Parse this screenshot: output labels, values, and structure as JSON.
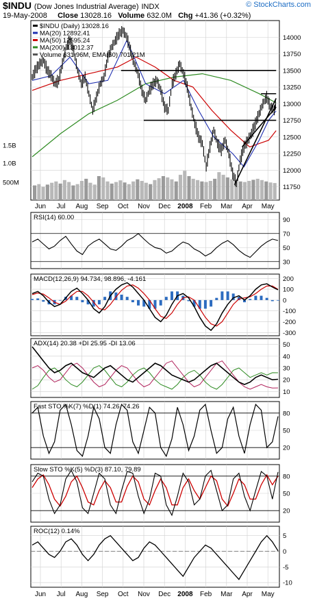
{
  "header": {
    "symbol": "$INDU",
    "name": "(Dow Jones Industrial Average)",
    "exchange": "INDX",
    "brand": "© StockCharts.com",
    "date": "19-May-2008",
    "close_label": "Close",
    "close_value": "13028.16",
    "volume_label": "Volume",
    "volume_value": "632.0M",
    "chg_label": "Chg",
    "chg_value": "+41.36 (+0.32%)"
  },
  "colors": {
    "price": "#000000",
    "ma20": "#1f2fb0",
    "ma50": "#cc0000",
    "ma200": "#2e8b22",
    "volume": "#b8b8b8",
    "volume_up": "#9a9a9a",
    "rsi": "#000000",
    "macd": "#000000",
    "signal": "#cc0000",
    "histogram": "#2d6cc0",
    "adx": "#000000",
    "plus_di": "#2e8b22",
    "minus_di": "#b0205a",
    "sto_k": "#000000",
    "sto_d": "#cc0000",
    "roc": "#000000",
    "grid": "#cfcfcf",
    "frame": "#000000"
  },
  "chart_data": [
    {
      "type": "line",
      "panel": "price",
      "legend": [
        "$INDU (Daily) 13028.16",
        "MA(20) 12892.41",
        "MA(50) 12595.24",
        "MA(200) 13012.37",
        "Volume 631.96M, EMA(60) 701.21M"
      ],
      "y_ticks": [
        14000,
        13750,
        13500,
        13250,
        13000,
        12750,
        12500,
        12250,
        12000,
        11750
      ],
      "ylim": [
        11550,
        14250
      ],
      "volume_ticks": [
        "1.5B",
        "1.0B",
        "500M"
      ],
      "x_ticks": [
        "Jun",
        "Jul",
        "Aug",
        "Sep",
        "Oct",
        "Nov",
        "Dec",
        "2008",
        "Feb",
        "Mar",
        "Apr",
        "May"
      ],
      "close_points": [
        [
          0,
          13400
        ],
        [
          4,
          13520
        ],
        [
          8,
          13600
        ],
        [
          12,
          13650
        ],
        [
          16,
          13500
        ],
        [
          20,
          13420
        ],
        [
          24,
          13300
        ],
        [
          28,
          13350
        ],
        [
          32,
          13600
        ],
        [
          36,
          13850
        ],
        [
          40,
          13950
        ],
        [
          44,
          13800
        ],
        [
          48,
          13500
        ],
        [
          52,
          13300
        ],
        [
          56,
          13400
        ],
        [
          60,
          13150
        ],
        [
          64,
          12900
        ],
        [
          68,
          13100
        ],
        [
          72,
          13300
        ],
        [
          76,
          13400
        ],
        [
          80,
          13700
        ],
        [
          84,
          13850
        ],
        [
          88,
          13950
        ],
        [
          92,
          14050
        ],
        [
          96,
          14100
        ],
        [
          100,
          14000
        ],
        [
          104,
          13800
        ],
        [
          108,
          13600
        ],
        [
          112,
          13450
        ],
        [
          116,
          13200
        ],
        [
          120,
          13050
        ],
        [
          124,
          13200
        ],
        [
          128,
          13300
        ],
        [
          132,
          13350
        ],
        [
          136,
          13200
        ],
        [
          140,
          12950
        ],
        [
          144,
          12900
        ],
        [
          148,
          13300
        ],
        [
          152,
          13450
        ],
        [
          156,
          13600
        ],
        [
          160,
          13450
        ],
        [
          164,
          13250
        ],
        [
          168,
          12950
        ],
        [
          172,
          12700
        ],
        [
          176,
          12500
        ],
        [
          180,
          12400
        ],
        [
          184,
          12050
        ],
        [
          188,
          12350
        ],
        [
          192,
          12600
        ],
        [
          196,
          12400
        ],
        [
          200,
          12300
        ],
        [
          204,
          12450
        ],
        [
          208,
          12250
        ],
        [
          212,
          11950
        ],
        [
          216,
          11800
        ],
        [
          220,
          12150
        ],
        [
          224,
          12350
        ],
        [
          228,
          12450
        ],
        [
          232,
          12550
        ],
        [
          236,
          12700
        ],
        [
          240,
          12850
        ],
        [
          244,
          13000
        ],
        [
          248,
          13100
        ],
        [
          252,
          12950
        ],
        [
          256,
          12900
        ],
        [
          258,
          13028
        ]
      ],
      "ma20_points": [
        [
          0,
          13350
        ],
        [
          20,
          13420
        ],
        [
          40,
          13700
        ],
        [
          60,
          13300
        ],
        [
          80,
          13350
        ],
        [
          100,
          13950
        ],
        [
          120,
          13300
        ],
        [
          140,
          13150
        ],
        [
          160,
          13350
        ],
        [
          176,
          12900
        ],
        [
          192,
          12500
        ],
        [
          212,
          12250
        ],
        [
          224,
          12050
        ],
        [
          240,
          12450
        ],
        [
          250,
          12750
        ],
        [
          258,
          12892
        ]
      ],
      "ma50_points": [
        [
          0,
          13200
        ],
        [
          30,
          13350
        ],
        [
          60,
          13450
        ],
        [
          90,
          13550
        ],
        [
          110,
          13700
        ],
        [
          130,
          13550
        ],
        [
          150,
          13350
        ],
        [
          170,
          13250
        ],
        [
          190,
          12900
        ],
        [
          210,
          12600
        ],
        [
          230,
          12350
        ],
        [
          250,
          12450
        ],
        [
          258,
          12595
        ]
      ],
      "ma200_points": [
        [
          0,
          12200
        ],
        [
          30,
          12550
        ],
        [
          60,
          12850
        ],
        [
          90,
          13050
        ],
        [
          120,
          13300
        ],
        [
          150,
          13400
        ],
        [
          180,
          13450
        ],
        [
          210,
          13350
        ],
        [
          240,
          13150
        ],
        [
          258,
          13012
        ]
      ],
      "trendlines": [
        {
          "from": [
            94,
            13500
          ],
          "to": [
            258,
            13500
          ]
        },
        {
          "from": [
            118,
            12750
          ],
          "to": [
            258,
            12750
          ]
        },
        {
          "from": [
            214,
            11780
          ],
          "to": [
            258,
            13080
          ]
        },
        {
          "from": [
            222,
            12350
          ],
          "to": [
            258,
            12950
          ]
        },
        {
          "from": [
            242,
            13150
          ],
          "to": [
            258,
            13150
          ]
        }
      ],
      "volume_values": [
        0.55,
        0.6,
        0.5,
        0.58,
        0.65,
        0.7,
        0.62,
        0.75,
        0.68,
        0.55,
        0.6,
        0.72,
        0.8,
        0.65,
        0.58,
        0.9,
        0.85,
        0.7,
        0.62,
        0.68,
        0.74,
        0.66,
        0.6,
        0.7,
        0.78,
        0.72,
        0.65,
        0.6,
        0.75,
        0.82,
        0.9,
        0.85,
        0.78,
        0.7,
        0.95,
        1.1,
        0.9,
        0.8,
        0.75,
        0.7,
        0.68,
        0.72,
        0.8,
        1.05,
        0.95,
        0.85,
        0.78,
        0.74,
        0.7,
        0.68,
        0.72,
        0.76,
        0.8,
        0.75,
        0.7,
        0.66,
        0.64
      ]
    },
    {
      "type": "line",
      "panel": "rsi",
      "label": "RSI(14) 60.00",
      "y_ticks": [
        90,
        70,
        50,
        30
      ],
      "ylim": [
        20,
        100
      ],
      "values": [
        58,
        62,
        55,
        48,
        52,
        60,
        66,
        55,
        45,
        40,
        52,
        58,
        62,
        55,
        48,
        46,
        52,
        60,
        64,
        70,
        62,
        55,
        50,
        48,
        42,
        45,
        52,
        58,
        55,
        48,
        44,
        38,
        42,
        50,
        56,
        60,
        54,
        46,
        40,
        36,
        44,
        52,
        58,
        62,
        60
      ]
    },
    {
      "type": "line",
      "panel": "macd",
      "label": "MACD(12,26,9) 94.734, 98.896, -4.161",
      "y_ticks": [
        200,
        100,
        0,
        -100,
        -200,
        -300
      ],
      "ylim": [
        -330,
        240
      ],
      "macd": [
        60,
        80,
        40,
        -20,
        -60,
        -40,
        20,
        80,
        110,
        60,
        0,
        -80,
        -120,
        -60,
        40,
        100,
        140,
        160,
        120,
        60,
        0,
        -80,
        -160,
        -200,
        -140,
        -40,
        40,
        60,
        20,
        -60,
        -160,
        -240,
        -280,
        -220,
        -120,
        -40,
        20,
        40,
        0,
        40,
        100,
        140,
        150,
        120,
        95
      ],
      "signal": [
        50,
        65,
        55,
        20,
        -20,
        -40,
        -10,
        40,
        80,
        80,
        40,
        -20,
        -80,
        -90,
        -40,
        30,
        90,
        130,
        140,
        110,
        60,
        0,
        -80,
        -150,
        -170,
        -120,
        -40,
        20,
        30,
        0,
        -80,
        -160,
        -220,
        -240,
        -200,
        -120,
        -40,
        10,
        20,
        30,
        60,
        100,
        130,
        130,
        99
      ]
    },
    {
      "type": "line",
      "panel": "adx",
      "label": "ADX(14) 20.38 +DI 25.95 -DI 13.06",
      "y_ticks": [
        50,
        40,
        30,
        20,
        10
      ],
      "ylim": [
        5,
        55
      ],
      "adx": [
        48,
        42,
        36,
        30,
        26,
        28,
        32,
        34,
        30,
        26,
        24,
        22,
        26,
        30,
        32,
        28,
        24,
        20,
        18,
        22,
        26,
        30,
        34,
        32,
        28,
        24,
        22,
        20,
        18,
        20,
        24,
        28,
        32,
        34,
        30,
        26,
        22,
        18,
        16,
        18,
        22,
        24,
        22,
        20,
        20.38
      ],
      "plus_di": [
        12,
        15,
        22,
        28,
        30,
        26,
        20,
        16,
        14,
        18,
        24,
        30,
        32,
        28,
        22,
        16,
        14,
        18,
        24,
        28,
        30,
        26,
        20,
        16,
        14,
        12,
        16,
        22,
        26,
        28,
        24,
        18,
        14,
        12,
        16,
        22,
        28,
        30,
        26,
        22,
        24,
        26,
        24,
        26,
        25.95
      ],
      "minus_di": [
        30,
        32,
        28,
        22,
        18,
        20,
        26,
        32,
        34,
        30,
        24,
        18,
        14,
        16,
        22,
        28,
        32,
        30,
        24,
        18,
        14,
        16,
        22,
        28,
        34,
        36,
        30,
        24,
        18,
        14,
        16,
        22,
        28,
        34,
        36,
        30,
        24,
        18,
        14,
        12,
        14,
        16,
        14,
        13,
        13.06
      ]
    },
    {
      "type": "line",
      "panel": "fast_sto",
      "label": "Fast STO %K(7) %D(1) 74.26, 74.26",
      "y_ticks": [
        80,
        50,
        20
      ],
      "ylim": [
        0,
        100
      ],
      "k": [
        80,
        90,
        40,
        10,
        30,
        85,
        95,
        60,
        15,
        5,
        40,
        90,
        70,
        20,
        10,
        60,
        95,
        85,
        30,
        10,
        50,
        90,
        80,
        20,
        5,
        35,
        90,
        60,
        15,
        40,
        85,
        95,
        50,
        10,
        20,
        70,
        90,
        40,
        10,
        60,
        95,
        85,
        20,
        30,
        74.26
      ]
    },
    {
      "type": "line",
      "panel": "slow_sto",
      "label": "Slow STO %K(5) %D(3) 87.10, 79.89",
      "y_ticks": [
        80,
        50,
        20
      ],
      "ylim": [
        0,
        100
      ],
      "k": [
        70,
        85,
        80,
        40,
        15,
        30,
        75,
        90,
        70,
        25,
        15,
        50,
        85,
        75,
        30,
        15,
        55,
        88,
        85,
        45,
        15,
        40,
        85,
        80,
        30,
        12,
        45,
        85,
        70,
        30,
        40,
        80,
        90,
        55,
        20,
        30,
        75,
        85,
        45,
        20,
        55,
        88,
        80,
        40,
        87.1
      ],
      "d": [
        60,
        75,
        82,
        65,
        40,
        28,
        45,
        70,
        80,
        60,
        35,
        30,
        55,
        72,
        60,
        35,
        35,
        62,
        80,
        70,
        40,
        30,
        55,
        75,
        60,
        30,
        30,
        60,
        75,
        55,
        40,
        60,
        80,
        72,
        40,
        28,
        50,
        75,
        65,
        40,
        40,
        65,
        82,
        65,
        79.89
      ]
    },
    {
      "type": "line",
      "panel": "roc",
      "label": "ROC(12) 0.14%",
      "y_ticks": [
        5,
        0,
        -5,
        -10
      ],
      "ylim": [
        -11.5,
        8
      ],
      "values": [
        2,
        3,
        1,
        -1,
        -2,
        0,
        3,
        4,
        2,
        -1,
        -3,
        -1,
        2,
        4,
        5,
        3,
        1,
        -1,
        -3,
        -2,
        1,
        3,
        2,
        0,
        -2,
        -4,
        -6,
        -8,
        -5,
        -2,
        0,
        2,
        1,
        -1,
        -3,
        -5,
        -7,
        -9,
        -6,
        -3,
        0,
        3,
        5,
        3,
        0.14
      ]
    }
  ]
}
